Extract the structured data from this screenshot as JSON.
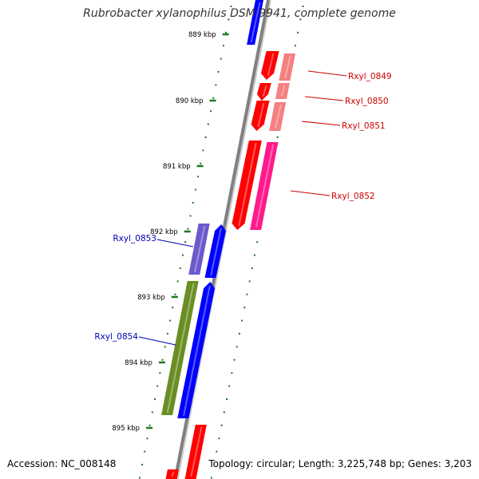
{
  "header": {
    "title": "Rubrobacter xylanophilus DSM 9941, complete genome"
  },
  "footer": {
    "accession": "Accession: NC_008148",
    "summary": "Topology: circular; Length: 3,225,748 bp; Genes: 3,203"
  },
  "colors": {
    "backbone": "#808080",
    "tick": "#1a7a1a",
    "forward_label": "#cc0000",
    "reverse_label": "#0000bb"
  },
  "ticks": [
    {
      "label": "889 kbp"
    },
    {
      "label": "890 kbp"
    },
    {
      "label": "891 kbp"
    },
    {
      "label": "892 kbp"
    },
    {
      "label": "893 kbp"
    },
    {
      "label": "894 kbp"
    },
    {
      "label": "895 kbp"
    }
  ],
  "genes": [
    {
      "label": "Rxyl_0849",
      "strand": "+",
      "color": "#ff0000"
    },
    {
      "label": "Rxyl_0850",
      "strand": "+",
      "color": "#ff0000"
    },
    {
      "label": "Rxyl_0851",
      "strand": "+",
      "color": "#ff0000"
    },
    {
      "label": "Rxyl_0852",
      "strand": "+",
      "color": "#ff0000"
    },
    {
      "label": "Rxyl_0853",
      "strand": "-",
      "color": "#0000ff"
    },
    {
      "label": "Rxyl_0854",
      "strand": "-",
      "color": "#0000ff"
    }
  ]
}
